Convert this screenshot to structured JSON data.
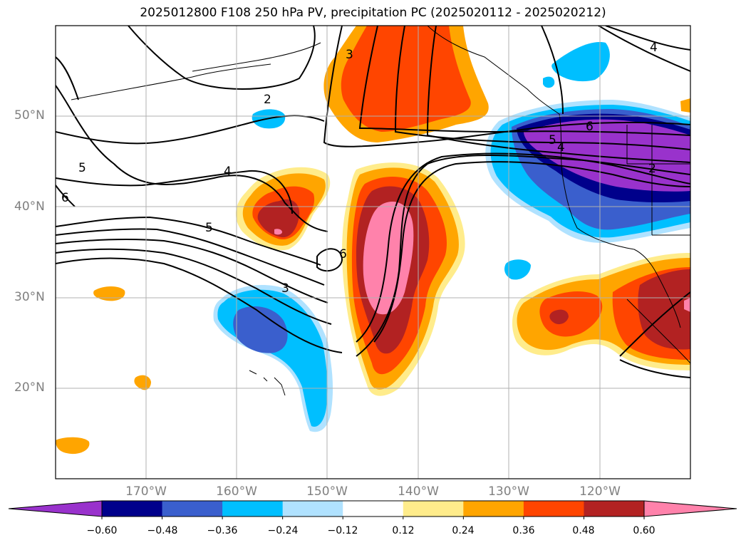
{
  "title": "2025012800 F108 250 hPa PV, precipitation PC (2025020112 - 2025020212)",
  "lat_labels": [
    "50°N",
    "40°N",
    "30°N",
    "20°N"
  ],
  "lon_labels": [
    "170°W",
    "160°W",
    "150°W",
    "140°W",
    "130°W",
    "120°W"
  ],
  "contour_labels": [
    "2",
    "3",
    "4",
    "5",
    "5",
    "6",
    "3",
    "4",
    "5",
    "6",
    "2",
    "4",
    "6"
  ],
  "colorbar": {
    "ticks": [
      "−0.60",
      "−0.48",
      "−0.36",
      "−0.24",
      "−0.12",
      "0.12",
      "0.24",
      "0.36",
      "0.48",
      "0.60"
    ],
    "colors": [
      "#9932cc",
      "#00008b",
      "#3a5fcd",
      "#00bfff",
      "#b0e2ff",
      "#ffffff",
      "#ffec8b",
      "#ffa500",
      "#ff4500",
      "#b22222",
      "#ff82ab"
    ]
  },
  "map_colors": {
    "neg_strong": "#9932cc",
    "neg_4": "#00008b",
    "neg_3": "#3a5fcd",
    "neg_2": "#00bfff",
    "neg_1": "#b0e2ff",
    "pos_1": "#ffec8b",
    "pos_2": "#ffa500",
    "pos_3": "#ff4500",
    "pos_4": "#b22222",
    "pos_strong": "#ff82ab"
  }
}
